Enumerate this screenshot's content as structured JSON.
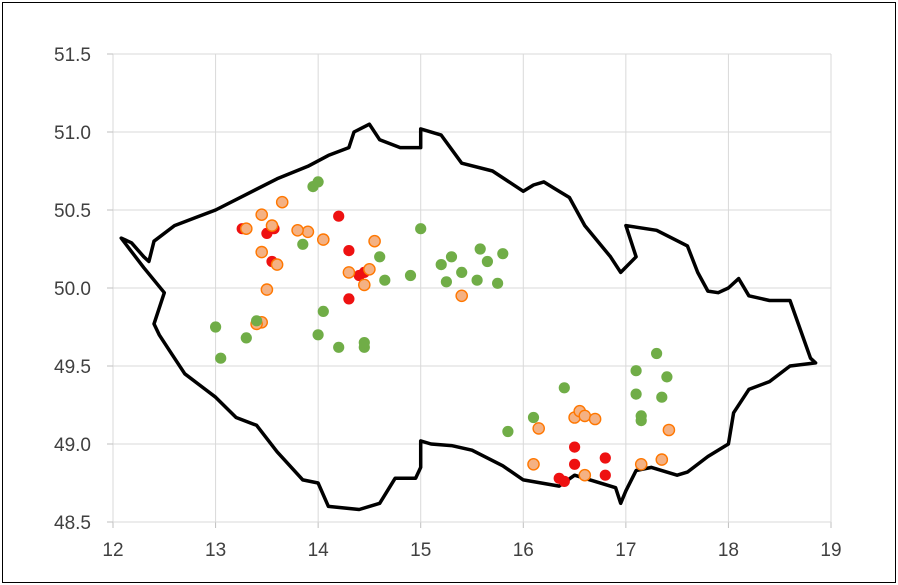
{
  "chart_data": {
    "type": "scatter",
    "title": "",
    "xlabel": "",
    "ylabel": "",
    "xlim": [
      12,
      19
    ],
    "ylim": [
      48.5,
      51.5
    ],
    "x_ticks": [
      "12",
      "13",
      "14",
      "15",
      "16",
      "17",
      "18",
      "19"
    ],
    "y_ticks": [
      "48.5",
      "49.0",
      "49.5",
      "50.0",
      "50.5",
      "51.0",
      "51.5"
    ],
    "grid": true,
    "legend": "none",
    "outline_color": "#000000",
    "border": [
      [
        12.08,
        50.32
      ],
      [
        12.18,
        50.29
      ],
      [
        12.3,
        50.2
      ],
      [
        12.35,
        50.17
      ],
      [
        12.4,
        50.3
      ],
      [
        12.6,
        50.4
      ],
      [
        12.8,
        50.45
      ],
      [
        13.0,
        50.5
      ],
      [
        13.3,
        50.6
      ],
      [
        13.6,
        50.7
      ],
      [
        13.9,
        50.78
      ],
      [
        14.1,
        50.85
      ],
      [
        14.3,
        50.9
      ],
      [
        14.35,
        51.0
      ],
      [
        14.5,
        51.05
      ],
      [
        14.6,
        50.95
      ],
      [
        14.8,
        50.9
      ],
      [
        15.0,
        50.9
      ],
      [
        15.0,
        51.02
      ],
      [
        15.2,
        50.98
      ],
      [
        15.4,
        50.8
      ],
      [
        15.7,
        50.75
      ],
      [
        16.0,
        50.62
      ],
      [
        16.1,
        50.66
      ],
      [
        16.2,
        50.68
      ],
      [
        16.3,
        50.64
      ],
      [
        16.45,
        50.58
      ],
      [
        16.6,
        50.4
      ],
      [
        16.85,
        50.2
      ],
      [
        16.95,
        50.1
      ],
      [
        17.1,
        50.2
      ],
      [
        17.0,
        50.4
      ],
      [
        17.3,
        50.37
      ],
      [
        17.6,
        50.27
      ],
      [
        17.7,
        50.1
      ],
      [
        17.8,
        49.98
      ],
      [
        17.9,
        49.97
      ],
      [
        18.0,
        50.0
      ],
      [
        18.1,
        50.06
      ],
      [
        18.2,
        49.95
      ],
      [
        18.4,
        49.92
      ],
      [
        18.6,
        49.92
      ],
      [
        18.8,
        49.55
      ],
      [
        18.85,
        49.52
      ],
      [
        18.6,
        49.5
      ],
      [
        18.4,
        49.4
      ],
      [
        18.2,
        49.35
      ],
      [
        18.05,
        49.2
      ],
      [
        18.0,
        49.0
      ],
      [
        17.8,
        48.92
      ],
      [
        17.6,
        48.82
      ],
      [
        17.5,
        48.8
      ],
      [
        17.25,
        48.85
      ],
      [
        17.1,
        48.83
      ],
      [
        17.0,
        48.7
      ],
      [
        16.95,
        48.62
      ],
      [
        16.9,
        48.72
      ],
      [
        16.6,
        48.78
      ],
      [
        16.5,
        48.8
      ],
      [
        16.35,
        48.73
      ],
      [
        16.0,
        48.77
      ],
      [
        15.8,
        48.86
      ],
      [
        15.5,
        48.96
      ],
      [
        15.3,
        48.99
      ],
      [
        15.1,
        49.0
      ],
      [
        15.0,
        49.02
      ],
      [
        15.0,
        48.85
      ],
      [
        14.95,
        48.78
      ],
      [
        14.75,
        48.78
      ],
      [
        14.6,
        48.62
      ],
      [
        14.4,
        48.58
      ],
      [
        14.1,
        48.6
      ],
      [
        14.0,
        48.75
      ],
      [
        13.85,
        48.77
      ],
      [
        13.6,
        48.95
      ],
      [
        13.4,
        49.12
      ],
      [
        13.2,
        49.17
      ],
      [
        13.0,
        49.3
      ],
      [
        12.9,
        49.35
      ],
      [
        12.7,
        49.45
      ],
      [
        12.55,
        49.6
      ],
      [
        12.45,
        49.7
      ],
      [
        12.4,
        49.77
      ],
      [
        12.5,
        49.97
      ],
      [
        12.3,
        50.13
      ],
      [
        12.08,
        50.32
      ]
    ],
    "series": [
      {
        "color": "#ee1111",
        "x": [
          13.26,
          13.3,
          13.5,
          13.55,
          13.57,
          14.2,
          14.3,
          14.4,
          14.45,
          14.3,
          16.35,
          16.4,
          16.5,
          16.5,
          16.8,
          16.8
        ],
        "y": [
          50.38,
          50.38,
          50.35,
          50.17,
          50.38,
          50.46,
          50.24,
          50.08,
          50.1,
          49.93,
          48.78,
          48.76,
          48.98,
          48.87,
          48.91,
          48.8
        ]
      },
      {
        "color": "#f4b183",
        "edge": "#ff7700",
        "x": [
          13.3,
          13.45,
          13.55,
          13.65,
          13.45,
          13.6,
          13.45,
          13.5,
          13.4,
          13.9,
          13.8,
          14.05,
          14.3,
          14.5,
          14.55,
          14.45,
          15.4,
          16.15,
          16.1,
          16.5,
          16.55,
          16.6,
          16.7,
          16.6,
          17.15,
          17.35,
          17.42
        ],
        "y": [
          50.38,
          50.47,
          50.4,
          50.55,
          50.23,
          50.15,
          49.78,
          49.99,
          49.77,
          50.36,
          50.37,
          50.31,
          50.1,
          50.12,
          50.3,
          50.02,
          49.95,
          49.1,
          48.87,
          49.17,
          49.21,
          49.18,
          49.16,
          48.8,
          48.87,
          48.9,
          49.09
        ]
      },
      {
        "color": "#70ad47",
        "x": [
          13.95,
          14.0,
          13.85,
          14.05,
          14.0,
          14.2,
          14.45,
          14.45,
          14.65,
          14.6,
          14.9,
          15.0,
          15.2,
          15.25,
          15.3,
          15.4,
          15.55,
          15.58,
          15.65,
          15.75,
          15.8,
          13.0,
          13.05,
          13.3,
          13.4,
          15.85,
          16.1,
          16.4,
          17.1,
          17.1,
          17.15,
          17.15,
          17.3,
          17.35,
          17.4
        ],
        "y": [
          50.65,
          50.68,
          50.28,
          49.85,
          49.7,
          49.62,
          49.62,
          49.65,
          50.05,
          50.2,
          50.08,
          50.38,
          50.15,
          50.04,
          50.2,
          50.1,
          50.05,
          50.25,
          50.17,
          50.03,
          50.22,
          49.75,
          49.55,
          49.68,
          49.79,
          49.08,
          49.17,
          49.36,
          49.32,
          49.47,
          49.18,
          49.15,
          49.58,
          49.3,
          49.43
        ]
      }
    ]
  }
}
